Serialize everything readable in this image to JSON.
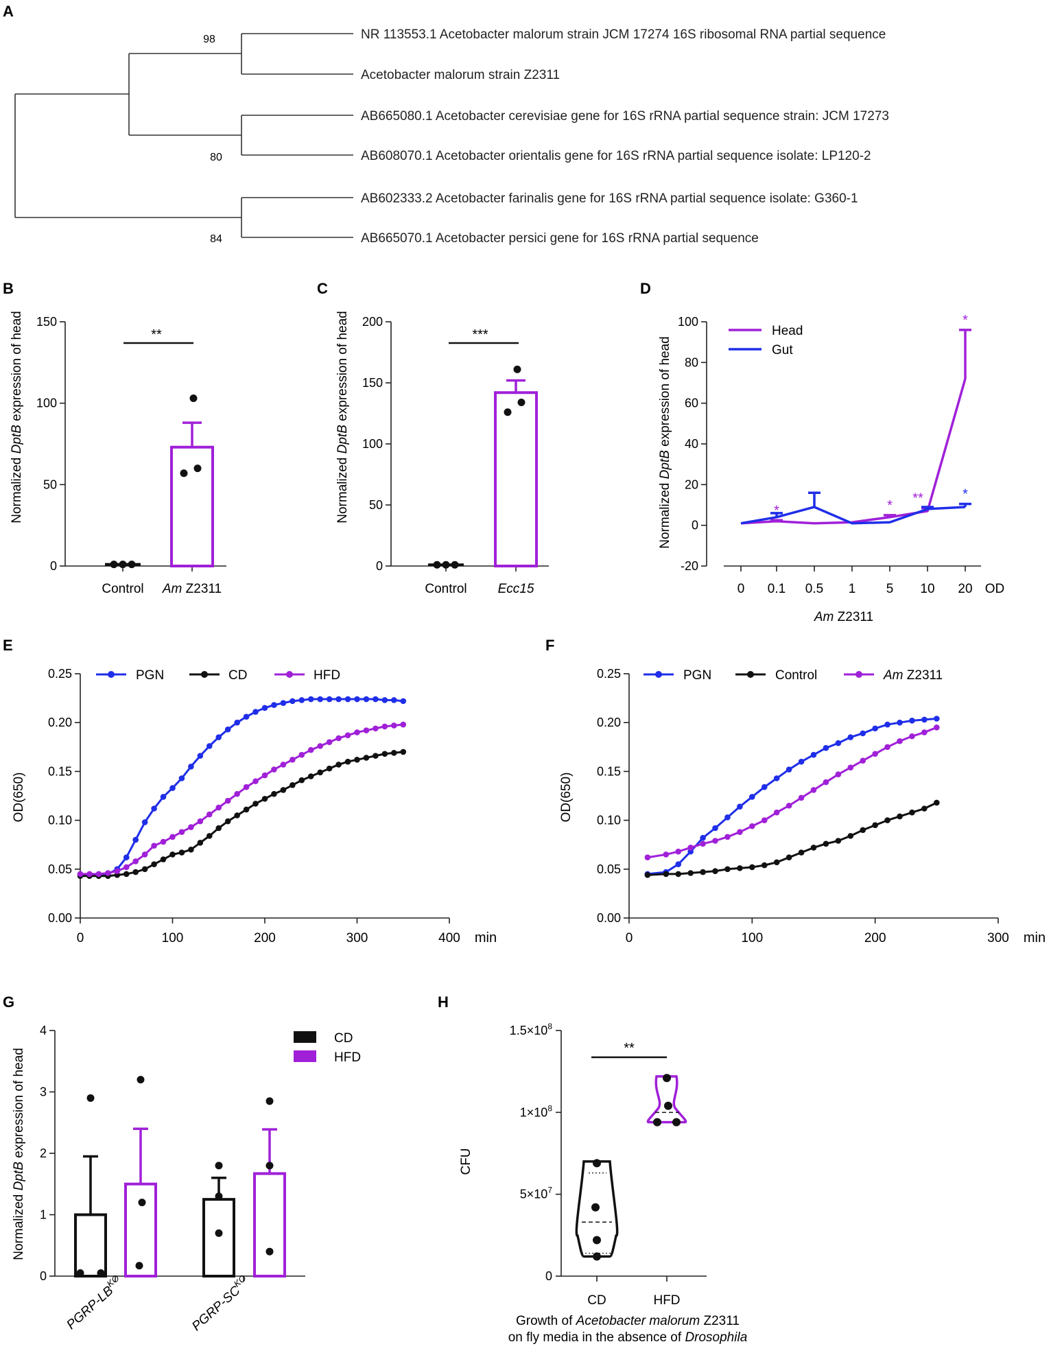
{
  "colors": {
    "purple": "#a020d8",
    "blue": "#1f2ee8",
    "black": "#111111"
  },
  "panel_labels": [
    "A",
    "B",
    "C",
    "D",
    "E",
    "F",
    "G",
    "H"
  ],
  "chart_data": [
    {
      "id": "A",
      "type": "dendrogram",
      "leaves": [
        "NR 113553.1 Acetobacter malorum strain JCM 17274 16S ribosomal RNA partial sequence",
        "Acetobacter malorum strain Z2311",
        "AB665080.1 Acetobacter cerevisiae gene for 16S rRNA partial sequence strain: JCM 17273",
        "AB608070.1 Acetobacter orientalis gene for 16S rRNA partial sequence isolate: LP120-2",
        "AB602333.2 Acetobacter farinalis gene for 16S rRNA partial sequence isolate: G360-1",
        "AB665070.1 Acetobacter persici gene for 16S rRNA partial sequence"
      ],
      "bootstrap": [
        "98",
        "80",
        "84"
      ]
    },
    {
      "id": "B",
      "type": "bar",
      "ylabel_pre": "Normalized ",
      "ylabel_gene": "DptB",
      "ylabel_post": " expression of head",
      "ylim": [
        0,
        150
      ],
      "yticks": [
        "0",
        "50",
        "100",
        "150"
      ],
      "categories": [
        {
          "italic": "",
          "plain": "Control"
        },
        {
          "italic": "Am",
          "plain": " Z2311"
        }
      ],
      "means": [
        1,
        73
      ],
      "errors": [
        1.5,
        15
      ],
      "points": [
        [
          1,
          1,
          1
        ],
        [
          57,
          60,
          103
        ]
      ],
      "significance": "**"
    },
    {
      "id": "C",
      "type": "bar",
      "ylabel_pre": "Normalized ",
      "ylabel_gene": "DptB",
      "ylabel_post": " expression of head",
      "ylim": [
        0,
        200
      ],
      "yticks": [
        "0",
        "50",
        "100",
        "150",
        "200"
      ],
      "categories": [
        {
          "italic": "",
          "plain": "Control"
        },
        {
          "italic": "Ecc15",
          "plain": ""
        }
      ],
      "means": [
        1,
        142
      ],
      "errors": [
        1.5,
        10
      ],
      "points": [
        [
          1,
          1,
          1
        ],
        [
          126,
          134,
          161
        ]
      ],
      "significance": "***"
    },
    {
      "id": "D",
      "type": "line",
      "ylabel_pre": "Normalized ",
      "ylabel_gene": "DptB",
      "ylabel_post": " expression of head",
      "ylim": [
        -20,
        100
      ],
      "yticks": [
        "-20",
        "0",
        "20",
        "40",
        "60",
        "80",
        "100"
      ],
      "x_categories": [
        "0",
        "0.1",
        "0.5",
        "1",
        "5",
        "10",
        "20"
      ],
      "x_unit": "OD",
      "xlabel_italic": "Am",
      "xlabel_plain": " Z2311",
      "series": [
        {
          "name": "Head",
          "values": [
            1,
            2,
            1,
            1.5,
            4,
            7,
            72
          ],
          "errors": [
            0,
            0.5,
            0,
            0,
            1,
            1.5,
            24
          ],
          "stars": [
            "",
            "*",
            "",
            "",
            "*",
            "**",
            "*"
          ]
        },
        {
          "name": "Gut",
          "values": [
            1,
            4,
            9,
            1,
            1.5,
            8,
            9
          ],
          "errors": [
            0,
            2,
            7,
            0,
            0,
            1,
            1.5
          ],
          "stars": [
            "",
            "",
            "",
            "",
            "",
            "",
            "*"
          ]
        }
      ]
    },
    {
      "id": "E",
      "type": "line",
      "ylabel": "OD(650)",
      "xlabel": "min",
      "xlim": [
        0,
        400
      ],
      "xticks": [
        "0",
        "100",
        "200",
        "300",
        "400"
      ],
      "ylim": [
        0,
        0.25
      ],
      "yticks": [
        "0.00",
        "0.05",
        "0.10",
        "0.15",
        "0.20",
        "0.25"
      ],
      "series": [
        {
          "name": "PGN",
          "x": [
            0,
            10,
            20,
            30,
            40,
            50,
            60,
            70,
            80,
            90,
            100,
            110,
            120,
            130,
            140,
            150,
            160,
            170,
            180,
            190,
            200,
            210,
            220,
            230,
            240,
            250,
            260,
            270,
            280,
            290,
            300,
            310,
            320,
            330,
            340,
            350
          ],
          "y": [
            0.044,
            0.044,
            0.044,
            0.045,
            0.05,
            0.062,
            0.08,
            0.098,
            0.112,
            0.124,
            0.133,
            0.143,
            0.155,
            0.166,
            0.176,
            0.185,
            0.193,
            0.2,
            0.206,
            0.211,
            0.215,
            0.218,
            0.22,
            0.222,
            0.223,
            0.224,
            0.224,
            0.224,
            0.224,
            0.224,
            0.224,
            0.224,
            0.224,
            0.223,
            0.223,
            0.222
          ]
        },
        {
          "name": "CD",
          "x": [
            0,
            10,
            20,
            30,
            40,
            50,
            60,
            70,
            80,
            90,
            100,
            110,
            120,
            130,
            140,
            150,
            160,
            170,
            180,
            190,
            200,
            210,
            220,
            230,
            240,
            250,
            260,
            270,
            280,
            290,
            300,
            310,
            320,
            330,
            340,
            350
          ],
          "y": [
            0.043,
            0.043,
            0.043,
            0.043,
            0.044,
            0.045,
            0.047,
            0.05,
            0.055,
            0.06,
            0.065,
            0.067,
            0.07,
            0.077,
            0.084,
            0.092,
            0.099,
            0.105,
            0.111,
            0.117,
            0.122,
            0.127,
            0.131,
            0.136,
            0.141,
            0.145,
            0.149,
            0.153,
            0.157,
            0.16,
            0.162,
            0.164,
            0.166,
            0.168,
            0.169,
            0.17
          ]
        },
        {
          "name": "HFD",
          "x": [
            0,
            10,
            20,
            30,
            40,
            50,
            60,
            70,
            80,
            90,
            100,
            110,
            120,
            130,
            140,
            150,
            160,
            170,
            180,
            190,
            200,
            210,
            220,
            230,
            240,
            250,
            260,
            270,
            280,
            290,
            300,
            310,
            320,
            330,
            340,
            350
          ],
          "y": [
            0.045,
            0.045,
            0.045,
            0.046,
            0.048,
            0.052,
            0.058,
            0.065,
            0.074,
            0.078,
            0.083,
            0.088,
            0.093,
            0.099,
            0.106,
            0.113,
            0.12,
            0.127,
            0.134,
            0.14,
            0.146,
            0.152,
            0.157,
            0.162,
            0.167,
            0.172,
            0.176,
            0.18,
            0.184,
            0.187,
            0.19,
            0.192,
            0.194,
            0.196,
            0.197,
            0.198
          ]
        }
      ]
    },
    {
      "id": "F",
      "type": "line",
      "ylabel": "OD(650)",
      "xlabel": "min",
      "xlim": [
        0,
        300
      ],
      "xticks": [
        "0",
        "100",
        "200",
        "300"
      ],
      "ylim": [
        0,
        0.25
      ],
      "yticks": [
        "0.00",
        "0.05",
        "0.10",
        "0.15",
        "0.20",
        "0.25"
      ],
      "series": [
        {
          "name": "PGN",
          "x": [
            15,
            30,
            40,
            50,
            60,
            70,
            80,
            90,
            100,
            110,
            120,
            130,
            140,
            150,
            160,
            170,
            180,
            190,
            200,
            210,
            220,
            230,
            240,
            250
          ],
          "y": [
            0.045,
            0.047,
            0.055,
            0.068,
            0.082,
            0.092,
            0.103,
            0.114,
            0.124,
            0.134,
            0.143,
            0.152,
            0.16,
            0.167,
            0.174,
            0.179,
            0.185,
            0.189,
            0.194,
            0.198,
            0.2,
            0.202,
            0.203,
            0.204
          ]
        },
        {
          "name": "Control",
          "x": [
            15,
            30,
            40,
            50,
            60,
            70,
            80,
            90,
            100,
            110,
            120,
            130,
            140,
            150,
            160,
            170,
            180,
            190,
            200,
            210,
            220,
            230,
            240,
            250
          ],
          "y": [
            0.044,
            0.045,
            0.045,
            0.046,
            0.047,
            0.048,
            0.05,
            0.051,
            0.052,
            0.054,
            0.057,
            0.062,
            0.067,
            0.072,
            0.076,
            0.079,
            0.084,
            0.09,
            0.095,
            0.1,
            0.104,
            0.108,
            0.112,
            0.118
          ]
        },
        {
          "name": "Am Z2311",
          "legend_italic": "Am",
          "legend_plain": " Z2311",
          "x": [
            15,
            30,
            40,
            50,
            60,
            70,
            80,
            90,
            100,
            110,
            120,
            130,
            140,
            150,
            160,
            170,
            180,
            190,
            200,
            210,
            220,
            230,
            240,
            250
          ],
          "y": [
            0.062,
            0.065,
            0.068,
            0.072,
            0.076,
            0.079,
            0.083,
            0.088,
            0.094,
            0.1,
            0.108,
            0.115,
            0.123,
            0.131,
            0.139,
            0.147,
            0.154,
            0.161,
            0.168,
            0.175,
            0.181,
            0.186,
            0.19,
            0.195
          ]
        }
      ]
    },
    {
      "id": "G",
      "type": "bar",
      "ylabel_pre": "Normalized ",
      "ylabel_gene": "DptB",
      "ylabel_post": " expression of head",
      "ylim": [
        0,
        4
      ],
      "yticks": [
        "0",
        "1",
        "2",
        "3",
        "4"
      ],
      "groups": [
        {
          "base": "PGRP-LB",
          "sup": "KO"
        },
        {
          "base": "PGRP-SC",
          "sup": "KO"
        }
      ],
      "legend": [
        "CD",
        "HFD"
      ],
      "means": {
        "CD": [
          1.0,
          1.25
        ],
        "HFD": [
          1.5,
          1.67
        ]
      },
      "errors": {
        "CD": [
          0.95,
          0.35
        ],
        "HFD": [
          0.9,
          0.72
        ]
      },
      "points": {
        "CD": [
          [
            2.9,
            0.05,
            0.05
          ],
          [
            1.8,
            1.3,
            0.7
          ]
        ],
        "HFD": [
          [
            3.2,
            1.2,
            0.17
          ],
          [
            2.85,
            1.8,
            0.4
          ]
        ]
      }
    },
    {
      "id": "H",
      "type": "violin",
      "ylabel": "CFU",
      "yticks": [
        {
          "v": 0,
          "base": "0",
          "exp": ""
        },
        {
          "v": 50000000,
          "base": "5×10",
          "exp": "7"
        },
        {
          "v": 100000000,
          "base": "1×10",
          "exp": "8"
        },
        {
          "v": 150000000,
          "base": "1.5×10",
          "exp": "8"
        }
      ],
      "ylim": [
        0,
        150000000
      ],
      "categories": [
        "CD",
        "HFD"
      ],
      "points": {
        "CD": [
          69000000,
          42000000,
          22000000,
          12000000
        ],
        "HFD": [
          121000000,
          104000000,
          94000000,
          94000000
        ]
      },
      "median": {
        "CD": 33000000,
        "HFD": 100000000
      },
      "significance": "**",
      "caption_line1_pre": "Growth of ",
      "caption_line1_italic": "Acetobacter malorum",
      "caption_line1_post": " Z2311",
      "caption_line2_pre": "on fly media in the absence of ",
      "caption_line2_italic": "Drosophila"
    }
  ]
}
